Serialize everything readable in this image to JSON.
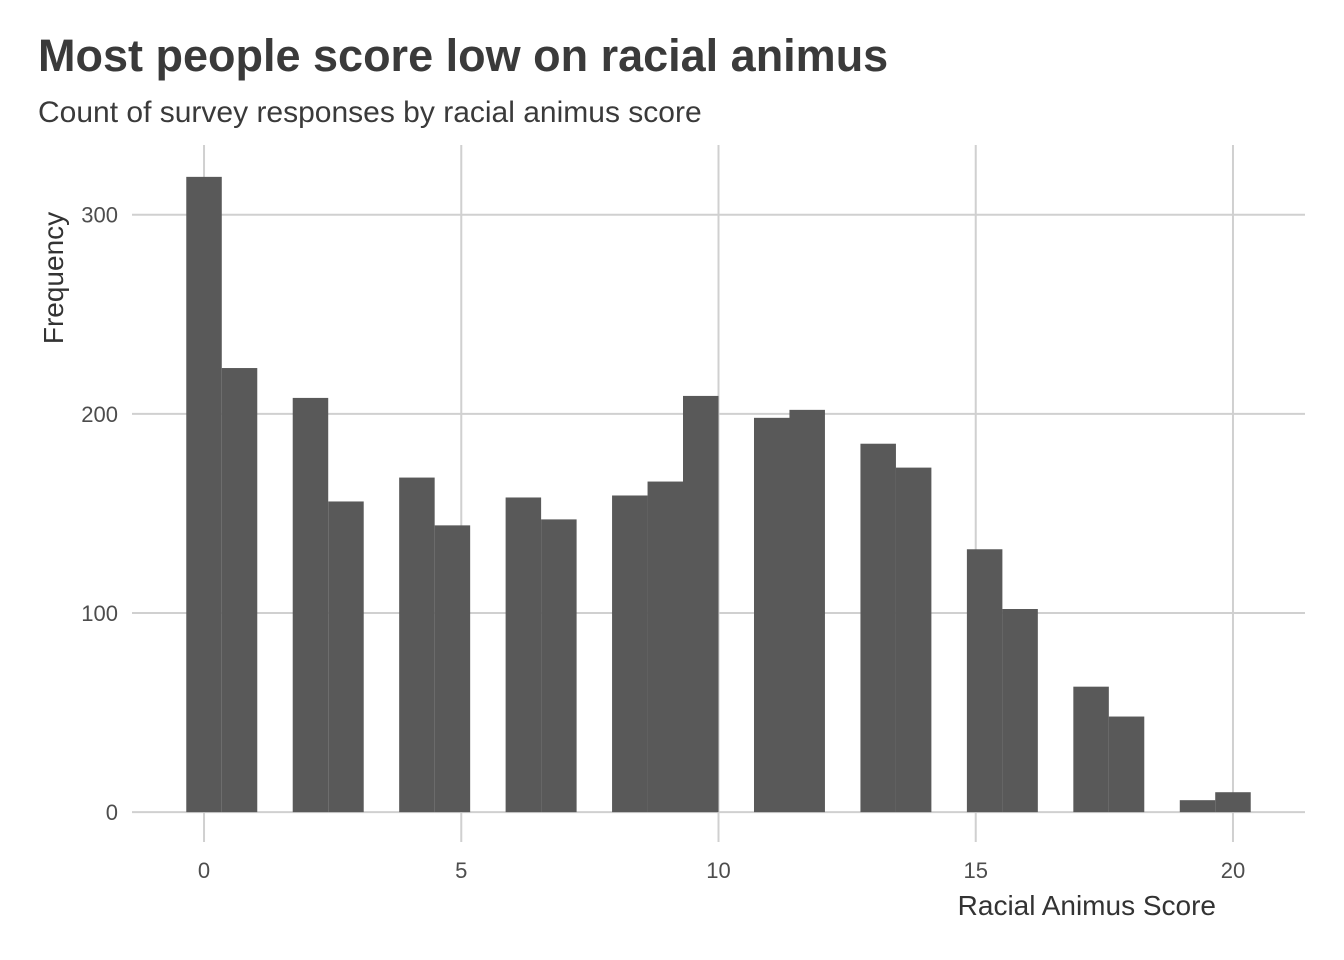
{
  "chart_data": {
    "type": "bar",
    "title": "Most people score low on racial animus",
    "subtitle": "Count of survey responses by racial animus score",
    "xlabel": "Racial Animus Score",
    "ylabel": "Frequency",
    "xlim": [
      -1.4,
      21.4
    ],
    "ylim": [
      -15,
      335
    ],
    "x_ticks": [
      0,
      5,
      10,
      15,
      20
    ],
    "y_ticks": [
      0,
      100,
      200,
      300
    ],
    "grid": true,
    "bin_width": 0.69,
    "bins": [
      {
        "start": -0.345,
        "count": 319
      },
      {
        "start": 0.345,
        "count": 223
      },
      {
        "start": 1.724,
        "count": 208
      },
      {
        "start": 2.414,
        "count": 156
      },
      {
        "start": 3.793,
        "count": 168
      },
      {
        "start": 4.483,
        "count": 144
      },
      {
        "start": 5.862,
        "count": 158
      },
      {
        "start": 6.552,
        "count": 147
      },
      {
        "start": 7.931,
        "count": 159
      },
      {
        "start": 8.621,
        "count": 166
      },
      {
        "start": 9.31,
        "count": 209
      },
      {
        "start": 10.69,
        "count": 198
      },
      {
        "start": 11.379,
        "count": 202
      },
      {
        "start": 12.759,
        "count": 185
      },
      {
        "start": 13.448,
        "count": 173
      },
      {
        "start": 14.828,
        "count": 132
      },
      {
        "start": 15.517,
        "count": 102
      },
      {
        "start": 16.897,
        "count": 63
      },
      {
        "start": 17.586,
        "count": 48
      },
      {
        "start": 18.966,
        "count": 6
      },
      {
        "start": 19.655,
        "count": 10
      }
    ],
    "colors": {
      "bar": "#595959",
      "grid": "#d0d0d0",
      "text": "#3a3a3a"
    }
  }
}
